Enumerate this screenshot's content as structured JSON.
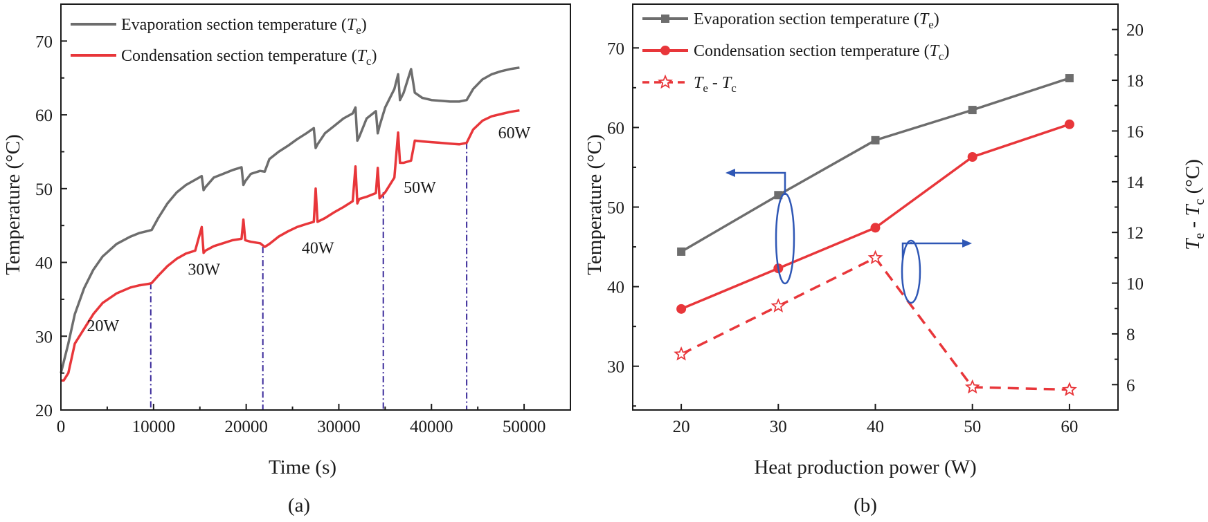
{
  "chart_data": [
    {
      "id": "a",
      "type": "line",
      "panel_label": "(a)",
      "xlabel": "Time (s)",
      "ylabel": "Temperature (°C)",
      "xlim": [
        0,
        55000
      ],
      "ylim": [
        20,
        75
      ],
      "xticks": [
        0,
        10000,
        20000,
        30000,
        40000,
        50000
      ],
      "yticks": [
        20,
        30,
        40,
        50,
        60,
        70
      ],
      "legend": [
        "Evaporation section temperature (",
        "T",
        "e",
        ")",
        "Condensation section temperature (",
        "T",
        "c",
        ")"
      ],
      "series": [
        {
          "name": "Evaporation section temperature (Te)",
          "color": "#6d6d6d",
          "x": [
            0,
            300,
            800,
            1500,
            2500,
            3500,
            4500,
            6000,
            7500,
            8500,
            9500,
            9800,
            10500,
            11500,
            12500,
            13500,
            14500,
            15200,
            15400,
            15600,
            16500,
            17500,
            18500,
            19500,
            19700,
            19900,
            20500,
            21500,
            22000,
            22500,
            23500,
            24500,
            25500,
            26500,
            27300,
            27500,
            27700,
            28500,
            29500,
            30500,
            31500,
            31800,
            32000,
            32200,
            33000,
            34000,
            34200,
            34400,
            35000,
            36000,
            36400,
            36600,
            37000,
            37800,
            38200,
            39000,
            40000,
            41000,
            42000,
            43000,
            43800,
            44500,
            45500,
            46500,
            47500,
            48500,
            49500
          ],
          "values": [
            25.0,
            26.5,
            29.0,
            33.0,
            36.5,
            39.0,
            40.8,
            42.5,
            43.5,
            44.0,
            44.3,
            44.4,
            46.0,
            48.0,
            49.5,
            50.5,
            51.2,
            51.7,
            49.8,
            50.2,
            51.5,
            52.0,
            52.5,
            52.9,
            50.5,
            51.0,
            52.0,
            52.4,
            52.3,
            54.0,
            55.0,
            55.8,
            56.7,
            57.5,
            58.2,
            55.5,
            56.0,
            57.5,
            58.5,
            59.5,
            60.2,
            61.0,
            56.5,
            57.0,
            59.5,
            60.5,
            57.5,
            58.5,
            61.0,
            63.5,
            65.5,
            62.0,
            63.0,
            66.2,
            63.0,
            62.3,
            62.0,
            61.9,
            61.8,
            61.8,
            62.0,
            63.5,
            64.8,
            65.5,
            65.9,
            66.2,
            66.4
          ]
        },
        {
          "name": "Condensation section temperature (Tc)",
          "color": "#e8363a",
          "x": [
            0,
            300,
            800,
            1500,
            2500,
            3500,
            4500,
            6000,
            7500,
            8500,
            9500,
            9800,
            10500,
            11500,
            12500,
            13500,
            14500,
            15200,
            15400,
            15600,
            16500,
            17500,
            18500,
            19500,
            19700,
            19900,
            20500,
            21500,
            22000,
            22500,
            23500,
            24500,
            25500,
            26500,
            27300,
            27500,
            27700,
            28500,
            29500,
            30500,
            31500,
            31800,
            32000,
            32200,
            33000,
            34000,
            34200,
            34400,
            35000,
            36000,
            36400,
            36600,
            37000,
            37800,
            38200,
            39000,
            40000,
            41000,
            42000,
            43000,
            43800,
            44500,
            45500,
            46500,
            47500,
            48500,
            49500
          ],
          "values": [
            24.0,
            24.0,
            25.0,
            29.0,
            31.0,
            33.0,
            34.5,
            35.8,
            36.6,
            36.9,
            37.1,
            37.2,
            38.2,
            39.5,
            40.5,
            41.2,
            41.6,
            44.8,
            41.3,
            41.6,
            42.2,
            42.6,
            43.0,
            43.2,
            45.8,
            43.0,
            42.8,
            42.6,
            42.1,
            42.5,
            43.5,
            44.2,
            44.8,
            45.2,
            45.5,
            50.0,
            45.5,
            46.0,
            46.8,
            47.5,
            48.3,
            53.0,
            48.0,
            48.6,
            48.9,
            49.4,
            52.8,
            48.7,
            49.5,
            51.5,
            57.6,
            53.5,
            53.5,
            53.8,
            56.5,
            56.4,
            56.3,
            56.2,
            56.1,
            56.0,
            56.2,
            58.0,
            59.2,
            59.8,
            60.1,
            60.4,
            60.6
          ]
        }
      ],
      "dashdot_lines_x": [
        9700,
        21800,
        34800,
        43800
      ],
      "annotations": [
        {
          "text": "20W",
          "x": 2800,
          "y": 30.7
        },
        {
          "text": "30W",
          "x": 13700,
          "y": 38.3
        },
        {
          "text": "40W",
          "x": 26000,
          "y": 41.2
        },
        {
          "text": "50W",
          "x": 37000,
          "y": 49.4
        },
        {
          "text": "60W",
          "x": 47200,
          "y": 56.8
        }
      ]
    },
    {
      "id": "b",
      "type": "line",
      "panel_label": "(b)",
      "xlabel": "Heat production power (W)",
      "ylabel": "Temperature (°C)",
      "ylabel_right": [
        "T",
        "e",
        " - ",
        "T",
        "c",
        " (°C)"
      ],
      "xlim": [
        15,
        65
      ],
      "ylim": [
        24.5,
        75.5
      ],
      "ylim_right": [
        5,
        21
      ],
      "xticks": [
        20,
        30,
        40,
        50,
        60
      ],
      "yticks": [
        30,
        40,
        50,
        60,
        70
      ],
      "yticks_right": [
        6,
        8,
        10,
        12,
        14,
        16,
        18,
        20
      ],
      "legend": [
        "Evaporation section temperature (",
        "T",
        "e",
        ")",
        "Condensation section temperature (",
        "T",
        "c",
        ")",
        "T",
        "e",
        " - ",
        "T",
        "c"
      ],
      "series": [
        {
          "name": "Evaporation section temperature (Te)",
          "axis": "left",
          "marker": "square",
          "style": "solid",
          "color": "#6d6d6d",
          "x": [
            20,
            30,
            40,
            50,
            60
          ],
          "values": [
            44.4,
            51.5,
            58.4,
            62.2,
            66.2
          ]
        },
        {
          "name": "Condensation section temperature (Tc)",
          "axis": "left",
          "marker": "circle",
          "style": "solid",
          "color": "#e8363a",
          "x": [
            20,
            30,
            40,
            50,
            60
          ],
          "values": [
            37.2,
            42.3,
            47.4,
            56.3,
            60.4
          ]
        },
        {
          "name": "Te - Tc",
          "axis": "right",
          "marker": "star",
          "style": "dashed",
          "color": "#e8363a",
          "x": [
            20,
            30,
            40,
            50,
            60
          ],
          "values": [
            7.2,
            9.1,
            11.0,
            5.9,
            5.8
          ]
        }
      ]
    }
  ]
}
